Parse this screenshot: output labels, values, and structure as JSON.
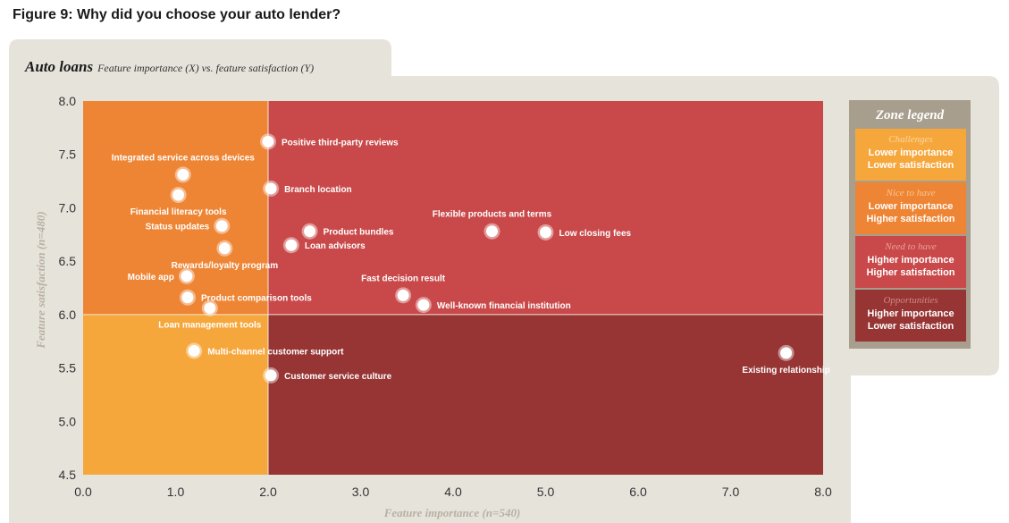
{
  "figure_title": "Figure 9: Why did you choose your auto lender?",
  "panel": {
    "title_main": "Auto loans",
    "title_sub": "Feature importance (X) vs. feature satisfaction (Y)"
  },
  "colors": {
    "challenges": "#f6a73c",
    "nice_to_have": "#ee8535",
    "need_to_have": "#c9494a",
    "opportunities": "#973434",
    "panel_bg": "#e6e3db"
  },
  "legend": {
    "title": "Zone legend",
    "zones": [
      {
        "name": "Challenges",
        "line1": "Lower importance",
        "line2": "Lower satisfaction",
        "color": "#f6a73c",
        "name_color": "#fbd7a0"
      },
      {
        "name": "Nice to have",
        "line1": "Lower importance",
        "line2": "Higher satisfaction",
        "color": "#ee8535",
        "name_color": "#f8c594"
      },
      {
        "name": "Need to have",
        "line1": "Higher importance",
        "line2": "Higher satisfaction",
        "color": "#c9494a",
        "name_color": "#e8a09a"
      },
      {
        "name": "Opportunities",
        "line1": "Higher importance",
        "line2": "Lower satisfaction",
        "color": "#973434",
        "name_color": "#d08a84"
      }
    ]
  },
  "chart_data": {
    "type": "scatter",
    "title": "Auto loans",
    "subtitle": "Feature importance (X) vs. feature satisfaction (Y)",
    "xlabel": "Feature importance (n=540)",
    "ylabel": "Feature satisfaction (n=480)",
    "xlim": [
      0,
      8
    ],
    "ylim": [
      4.5,
      8
    ],
    "x_ticks": [
      "0.0",
      "1.0",
      "2.0",
      "3.0",
      "4.0",
      "5.0",
      "6.0",
      "7.0",
      "8.0"
    ],
    "y_ticks": [
      "4.5",
      "5.0",
      "5.5",
      "6.0",
      "6.5",
      "7.0",
      "7.5",
      "8.0"
    ],
    "zone_split": {
      "x": 2.0,
      "y": 6.0
    },
    "points": [
      {
        "label": "Positive third-party reviews",
        "x": 2.0,
        "y": 7.62,
        "pos": "right"
      },
      {
        "label": "Integrated service across devices",
        "x": 1.08,
        "y": 7.31,
        "pos": "above"
      },
      {
        "label": "Branch location",
        "x": 2.03,
        "y": 7.18,
        "pos": "right"
      },
      {
        "label": "Financial literacy tools",
        "x": 1.03,
        "y": 7.12,
        "pos": "below"
      },
      {
        "label": "Status updates",
        "x": 1.5,
        "y": 6.83,
        "pos": "left"
      },
      {
        "label": "Product bundles",
        "x": 2.45,
        "y": 6.78,
        "pos": "right"
      },
      {
        "label": "Loan advisors",
        "x": 2.25,
        "y": 6.65,
        "pos": "right"
      },
      {
        "label": "Rewards/loyalty program",
        "x": 1.53,
        "y": 6.62,
        "pos": "below"
      },
      {
        "label": "Flexible products and terms",
        "x": 4.42,
        "y": 6.78,
        "pos": "above"
      },
      {
        "label": "Low closing fees",
        "x": 5.0,
        "y": 6.77,
        "pos": "right"
      },
      {
        "label": "Mobile app",
        "x": 1.12,
        "y": 6.36,
        "pos": "left"
      },
      {
        "label": "Product comparison tools",
        "x": 1.13,
        "y": 6.16,
        "pos": "right"
      },
      {
        "label": "Loan management tools",
        "x": 1.37,
        "y": 6.06,
        "pos": "below"
      },
      {
        "label": "Fast decision result",
        "x": 3.46,
        "y": 6.18,
        "pos": "above"
      },
      {
        "label": "Well-known financial institution",
        "x": 3.68,
        "y": 6.09,
        "pos": "right"
      },
      {
        "label": "Multi-channel customer support",
        "x": 1.2,
        "y": 5.66,
        "pos": "right"
      },
      {
        "label": "Customer service culture",
        "x": 2.03,
        "y": 5.43,
        "pos": "right"
      },
      {
        "label": "Existing relationship",
        "x": 7.6,
        "y": 5.64,
        "pos": "below"
      }
    ]
  }
}
